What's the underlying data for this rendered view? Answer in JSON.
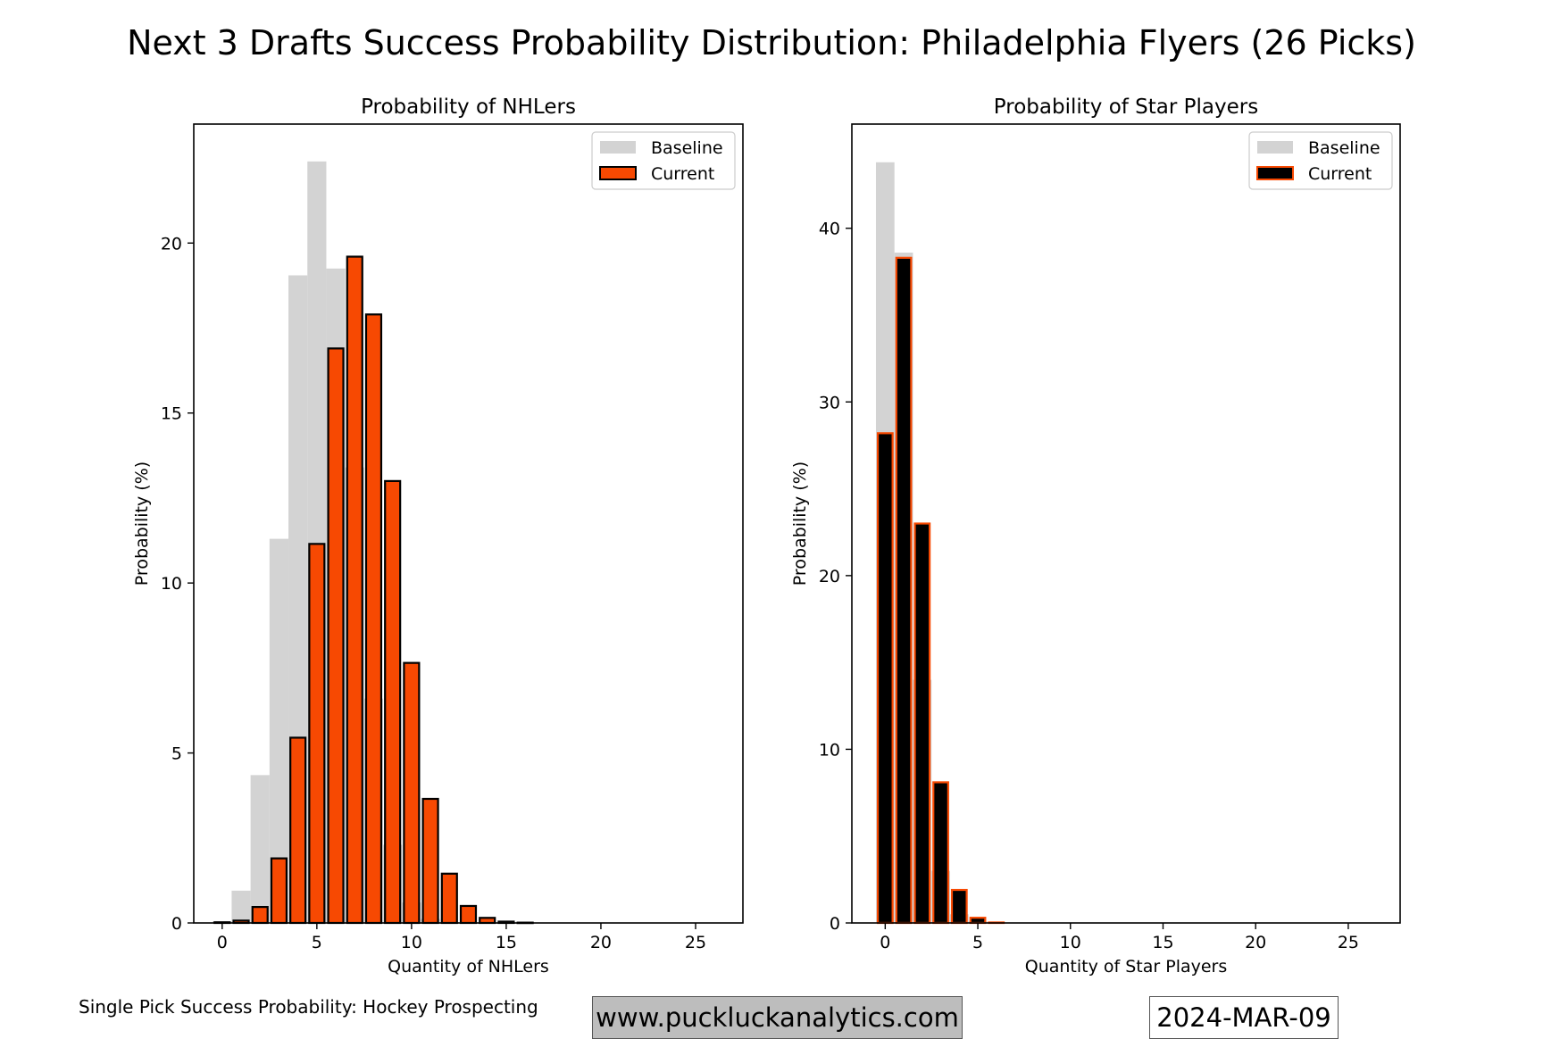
{
  "chart_data": [
    {
      "type": "bar",
      "title": "Probability of NHLers",
      "xlabel": "Quantity of NHLers",
      "ylabel": "Probability (%)",
      "xlim": [
        -1.5,
        27.5
      ],
      "ylim": [
        0,
        23.5
      ],
      "xticks": [
        0,
        5,
        10,
        15,
        20,
        25
      ],
      "yticks": [
        0,
        5,
        10,
        15,
        20
      ],
      "legend": {
        "position": "top-right",
        "entries": [
          "Baseline",
          "Current"
        ]
      },
      "x": [
        0,
        1,
        2,
        3,
        4,
        5,
        6,
        7,
        8,
        9,
        10,
        11,
        12,
        13,
        14,
        15,
        16,
        17,
        18,
        19,
        20,
        21,
        22,
        23,
        24,
        25,
        26
      ],
      "series": [
        {
          "name": "Baseline",
          "color": "#d3d3d3",
          "edge": null,
          "values": [
            0.05,
            0.95,
            4.35,
            11.3,
            19.05,
            22.4,
            19.25,
            13.4,
            6.6,
            2.3,
            0.6,
            0.12,
            0.03,
            0,
            0,
            0,
            0,
            0,
            0,
            0,
            0,
            0,
            0,
            0,
            0,
            0,
            0
          ]
        },
        {
          "name": "Current",
          "color": "#f74902",
          "edge": "#000000",
          "values": [
            0.02,
            0.07,
            0.47,
            1.9,
            5.45,
            11.15,
            16.9,
            19.6,
            17.9,
            13.0,
            7.65,
            3.65,
            1.45,
            0.5,
            0.15,
            0.04,
            0.01,
            0,
            0,
            0,
            0,
            0,
            0,
            0,
            0,
            0,
            0
          ]
        }
      ]
    },
    {
      "type": "bar",
      "title": "Probability of Star Players",
      "xlabel": "Quantity of Star Players",
      "ylabel": "Probability (%)",
      "xlim": [
        -1.8,
        27.8
      ],
      "ylim": [
        0,
        46
      ],
      "xticks": [
        0,
        5,
        10,
        15,
        20,
        25
      ],
      "yticks": [
        0,
        10,
        20,
        30,
        40
      ],
      "legend": {
        "position": "top-right",
        "entries": [
          "Baseline",
          "Current"
        ]
      },
      "x": [
        0,
        1,
        2,
        3,
        4,
        5,
        6,
        7,
        8,
        9,
        10,
        11,
        12,
        13,
        14,
        15,
        16,
        17,
        18,
        19,
        20,
        21,
        22,
        23,
        24,
        25,
        26
      ],
      "series": [
        {
          "name": "Baseline",
          "color": "#d3d3d3",
          "edge": null,
          "values": [
            43.8,
            38.6,
            14.0,
            3.0,
            0.5,
            0.1,
            0,
            0,
            0,
            0,
            0,
            0,
            0,
            0,
            0,
            0,
            0,
            0,
            0,
            0,
            0,
            0,
            0,
            0,
            0,
            0,
            0
          ]
        },
        {
          "name": "Current",
          "color": "#000000",
          "edge": "#f74902",
          "values": [
            28.2,
            38.3,
            23.0,
            8.1,
            1.9,
            0.3,
            0.03,
            0,
            0,
            0,
            0,
            0,
            0,
            0,
            0,
            0,
            0,
            0,
            0,
            0,
            0,
            0,
            0,
            0,
            0,
            0,
            0
          ]
        }
      ]
    }
  ],
  "suptitle": "Next 3 Drafts Success Probability Distribution: Philadelphia Flyers (26 Picks)",
  "footer": {
    "source": "Single Pick Success Probability: Hockey Prospecting",
    "website": "www.puckluckanalytics.com",
    "date": "2024-MAR-09"
  }
}
